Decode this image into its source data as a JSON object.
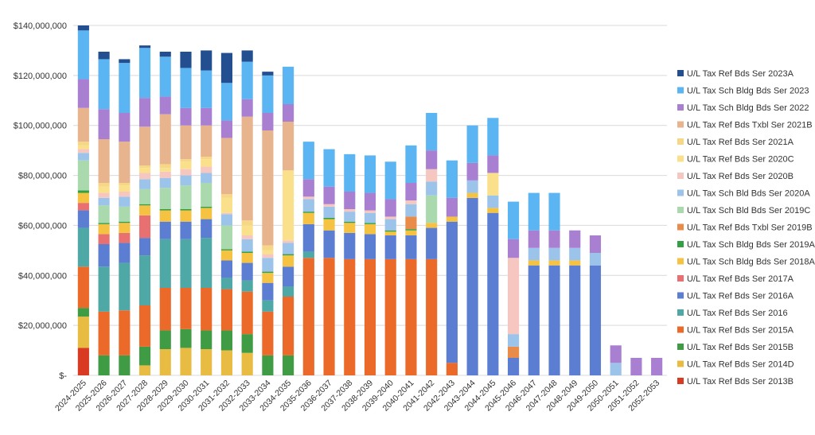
{
  "chart_data": {
    "type": "bar",
    "stacked": true,
    "categories": [
      "2024-2025",
      "2025-2026",
      "2026-2027",
      "2027-2028",
      "2028-2029",
      "2029-2030",
      "2030-2031",
      "2031-2032",
      "2032-2033",
      "2033-2034",
      "2034-2035",
      "2035-2036",
      "2036-2037",
      "2037-2038",
      "2038-2039",
      "2039-2040",
      "2040-2041",
      "2041-2042",
      "2042-2043",
      "2043-2044",
      "2044-2045",
      "2045-2046",
      "2046-2047",
      "2047-2048",
      "2048-2049",
      "2049-2050",
      "2050-2051",
      "2051-2052",
      "2052-2053"
    ],
    "ylim": [
      0,
      140000000
    ],
    "yticks": [
      0,
      20000000,
      40000000,
      60000000,
      80000000,
      100000000,
      120000000,
      140000000
    ],
    "ytick_labels": [
      "$-",
      "$20,000,000",
      "$40,000,000",
      "$60,000,000",
      "$80,000,000",
      "$100,000,000",
      "$120,000,000",
      "$140,000,000"
    ],
    "grid": true,
    "legend_position": "right",
    "series": [
      {
        "name": "U/L Tax Ref Bds Ser 2013B",
        "color": "#d93a22",
        "values": [
          11,
          0,
          0,
          0,
          0,
          0,
          0,
          0,
          0,
          0,
          0,
          0,
          0,
          0,
          0,
          0,
          0,
          0,
          0,
          0,
          0,
          0,
          0,
          0,
          0,
          0,
          0,
          0,
          0
        ]
      },
      {
        "name": "U/L Tax Ref Bds Ser 2014D",
        "color": "#e8bc42",
        "values": [
          12.5,
          0,
          0,
          4,
          10.5,
          11,
          10.5,
          10,
          9,
          0,
          0,
          0,
          0,
          0,
          0,
          0,
          0,
          0,
          0,
          0,
          0,
          0,
          0,
          0,
          0,
          0,
          0,
          0,
          0
        ]
      },
      {
        "name": "U/L Tax Ref Bds Ser 2015B",
        "color": "#3f9c45",
        "values": [
          3.5,
          8,
          8,
          7.5,
          7.5,
          7.5,
          7.5,
          8,
          7.5,
          8,
          8,
          0,
          0,
          0,
          0,
          0,
          0,
          0,
          0,
          0,
          0,
          0,
          0,
          0,
          0,
          0,
          0,
          0,
          0
        ]
      },
      {
        "name": "U/L Tax Ref Bds Ser 2015A",
        "color": "#eb6a2a",
        "values": [
          16.5,
          17.5,
          18,
          16.5,
          17,
          16.5,
          17,
          16.5,
          17,
          17.5,
          23.5,
          47,
          47,
          46.5,
          46.5,
          46.5,
          46.5,
          46.5,
          5,
          0,
          0,
          0,
          0,
          0,
          0,
          0,
          0,
          0,
          0
        ]
      },
      {
        "name": "U/L Tax Ref Bds Ser 2016",
        "color": "#4ea8a6",
        "values": [
          15.5,
          18,
          19,
          20,
          19.5,
          19.5,
          20,
          4.5,
          4.5,
          4.5,
          4,
          2.5,
          0,
          0,
          0,
          0,
          0,
          0,
          0,
          0,
          0,
          0,
          0,
          0,
          0,
          0,
          0,
          0,
          0
        ]
      },
      {
        "name": "U/L Tax Ref Bds Ser 2016A",
        "color": "#5b7ed2",
        "values": [
          7,
          9,
          8,
          7,
          7,
          7,
          7.5,
          7,
          7,
          7,
          8,
          11,
          11,
          10.5,
          10,
          9.5,
          9.5,
          12.5,
          56.5,
          71,
          65,
          7,
          44,
          44,
          44,
          44,
          0,
          0,
          0
        ]
      },
      {
        "name": "U/L Tax Ref Bds Ser 2017A",
        "color": "#e87070",
        "values": [
          3,
          4,
          4,
          9,
          0,
          0,
          0,
          0,
          0,
          0,
          0,
          0,
          0,
          0,
          0,
          0,
          0,
          0,
          0,
          0,
          0,
          0,
          0,
          0,
          0,
          0,
          0,
          0,
          0
        ]
      },
      {
        "name": "U/L Tax Sch Bldg Bds Ser 2018A",
        "color": "#f5c242",
        "values": [
          4,
          4,
          4,
          4,
          4.5,
          4.5,
          4.5,
          4,
          4,
          4,
          4.5,
          4.5,
          4.5,
          4,
          4,
          1.5,
          2,
          2,
          2,
          2,
          2,
          0,
          2,
          2,
          2,
          0,
          0,
          0,
          0
        ]
      },
      {
        "name": "U/L Tax Sch Bldg Bds Ser 2019A",
        "color": "#33a043",
        "values": [
          1,
          0.5,
          0.5,
          0.5,
          0.5,
          0.5,
          0.5,
          0.5,
          0.5,
          0.5,
          0.5,
          0.5,
          0.5,
          0.5,
          0.5,
          0.5,
          0.5,
          0,
          0,
          0,
          0,
          0,
          0,
          0,
          0,
          0,
          0,
          0,
          0
        ]
      },
      {
        "name": "U/L Tax Ref Bds Txbl Ser 2019B",
        "color": "#ea8c49",
        "values": [
          0,
          0,
          0,
          0,
          0,
          0,
          0,
          0,
          0,
          0,
          0,
          0,
          0,
          0,
          0,
          0,
          5,
          0,
          0,
          0,
          0,
          4.5,
          0,
          0,
          0,
          0,
          0,
          0,
          0
        ]
      },
      {
        "name": "U/L Tax Sch Bld Bds Ser 2019C",
        "color": "#a9d9ac",
        "values": [
          12,
          7,
          6,
          6,
          8.5,
          9.5,
          9.5,
          9.5,
          0,
          0,
          0,
          0,
          0,
          0,
          0,
          0,
          0,
          11,
          0,
          0,
          0,
          0,
          0,
          0,
          0,
          0,
          0,
          0,
          0
        ]
      },
      {
        "name": "U/L Tax Sch Bld Bds Ser 2020A",
        "color": "#9cc3ea",
        "values": [
          3,
          3,
          4,
          4,
          4,
          4,
          4,
          4.5,
          5,
          5.5,
          4.5,
          5,
          4.5,
          4,
          4,
          4.5,
          5,
          5.5,
          0,
          5,
          5,
          5,
          5,
          5,
          5,
          5,
          5,
          0,
          0
        ]
      },
      {
        "name": "U/L Tax Ref Bds Ser 2020B",
        "color": "#f6c6c0",
        "values": [
          1.5,
          2,
          2,
          2.5,
          2.5,
          2.5,
          2.5,
          0.5,
          1.5,
          1.5,
          1,
          1,
          1,
          1,
          1,
          1,
          1.5,
          5,
          0,
          0,
          0,
          30.5,
          0,
          0,
          0,
          0,
          0,
          0,
          0
        ]
      },
      {
        "name": "U/L Tax Ref Bds Ser 2020C",
        "color": "#fbe08c",
        "values": [
          1.5,
          2.5,
          2.5,
          2,
          1.5,
          3,
          3,
          6,
          4,
          1.5,
          28,
          0,
          0,
          0,
          0,
          0,
          0,
          0,
          0,
          0,
          9,
          0,
          0,
          0,
          0,
          0,
          0,
          0,
          0
        ]
      },
      {
        "name": "U/L Tax Ref Bds Ser 2021A",
        "color": "#f5d785",
        "values": [
          1.5,
          1.5,
          1,
          1,
          1.5,
          1,
          1,
          1.5,
          2,
          2,
          0,
          0,
          0,
          0,
          0,
          0,
          0,
          0,
          0,
          0,
          0,
          0,
          0,
          0,
          0,
          0,
          0,
          0,
          0
        ]
      },
      {
        "name": "U/L Tax Ref Bds Txbl Ser 2021B",
        "color": "#e8b48e",
        "values": [
          13.5,
          17.5,
          16.5,
          15.5,
          20,
          13.5,
          12.5,
          22.5,
          41.5,
          46,
          19.5,
          0,
          0,
          0,
          0,
          0,
          0,
          0,
          0,
          0,
          0,
          0,
          0,
          0,
          0,
          0,
          0,
          0,
          0
        ]
      },
      {
        "name": "U/L Tax Sch Bldg Bds Ser 2022",
        "color": "#a97fd2",
        "values": [
          11.5,
          12,
          11.5,
          11.5,
          7,
          7,
          7,
          7,
          7,
          7,
          7,
          7,
          7,
          7,
          7,
          7,
          7,
          7.5,
          7.5,
          7,
          7,
          7.5,
          7,
          7,
          7,
          7,
          7,
          7,
          7
        ]
      },
      {
        "name": "U/L Tax Sch Bldg Bds Ser 2023",
        "color": "#5ab5f2",
        "values": [
          19.5,
          20,
          20,
          20,
          16,
          16,
          15,
          15,
          15,
          15,
          15,
          15,
          15,
          15,
          15,
          15,
          15,
          15,
          15,
          15,
          15,
          15,
          15,
          15,
          0,
          0,
          0,
          0,
          0
        ]
      },
      {
        "name": "U/L Tax Ref Bds Ser 2023A",
        "color": "#234e8f",
        "values": [
          2,
          3,
          1.5,
          1,
          2,
          6.5,
          8,
          12,
          4.5,
          1.5,
          0,
          0,
          0,
          0,
          0,
          0,
          0,
          0,
          0,
          0,
          0,
          0,
          0,
          0,
          0,
          0,
          0,
          0,
          0
        ]
      }
    ],
    "value_unit_multiplier": 1000000
  }
}
